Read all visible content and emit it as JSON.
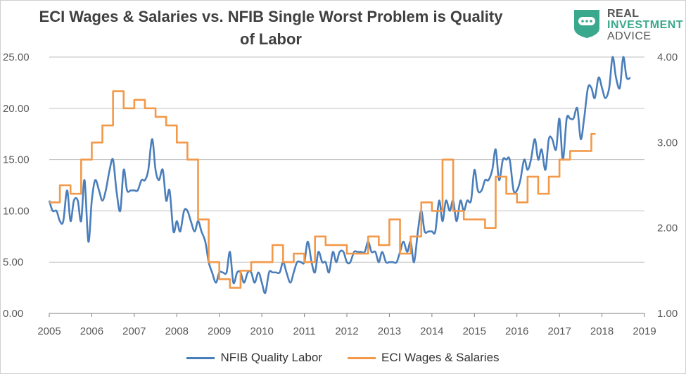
{
  "title_line1": "ECI Wages & Salaries vs. NFIB Single Worst Problem is Quality",
  "title_line2": "of Labor",
  "logo": {
    "line1": "REAL",
    "line2": "INVESTMENT",
    "line3": "ADVICE",
    "icon": "speech-bubble-shield-icon"
  },
  "colors": {
    "nfib": "#4a7ebb",
    "eci": "#f2994a",
    "grid": "#bfbfbf",
    "axis": "#7f7f7f"
  },
  "chart_data": {
    "type": "line",
    "title": "ECI Wages & Salaries vs. NFIB Single Worst Problem is Quality of Labor",
    "grid": true,
    "legend_position": "bottom",
    "x_ticks": [
      "2005",
      "2006",
      "2007",
      "2008",
      "2009",
      "2010",
      "2011",
      "2012",
      "2013",
      "2014",
      "2015",
      "2016",
      "2017",
      "2018",
      "2019"
    ],
    "x_range": [
      2005,
      2019
    ],
    "y_left": {
      "ticks": [
        "0.00",
        "5.00",
        "10.00",
        "15.00",
        "20.00",
        "25.00"
      ],
      "range": [
        0,
        25
      ]
    },
    "y_right": {
      "ticks": [
        "1.00",
        "2.00",
        "3.00",
        "4.00"
      ],
      "range": [
        1,
        4
      ]
    },
    "series": [
      {
        "name": "NFIB Quality Labor",
        "axis": "left",
        "points": [
          [
            2005.0,
            11
          ],
          [
            2005.08,
            10
          ],
          [
            2005.17,
            10
          ],
          [
            2005.25,
            9
          ],
          [
            2005.33,
            9
          ],
          [
            2005.42,
            12
          ],
          [
            2005.5,
            9
          ],
          [
            2005.58,
            11
          ],
          [
            2005.67,
            11
          ],
          [
            2005.75,
            9
          ],
          [
            2005.83,
            13
          ],
          [
            2005.92,
            7
          ],
          [
            2006.0,
            11
          ],
          [
            2006.08,
            13
          ],
          [
            2006.17,
            12
          ],
          [
            2006.25,
            11
          ],
          [
            2006.33,
            12
          ],
          [
            2006.42,
            14
          ],
          [
            2006.5,
            15
          ],
          [
            2006.58,
            12
          ],
          [
            2006.67,
            10
          ],
          [
            2006.75,
            14
          ],
          [
            2006.83,
            12
          ],
          [
            2006.92,
            12
          ],
          [
            2007.0,
            12
          ],
          [
            2007.08,
            12
          ],
          [
            2007.17,
            13
          ],
          [
            2007.25,
            13
          ],
          [
            2007.33,
            14
          ],
          [
            2007.42,
            17
          ],
          [
            2007.5,
            14
          ],
          [
            2007.58,
            13
          ],
          [
            2007.67,
            14
          ],
          [
            2007.75,
            11
          ],
          [
            2007.83,
            12
          ],
          [
            2007.92,
            8
          ],
          [
            2008.0,
            9
          ],
          [
            2008.08,
            8
          ],
          [
            2008.17,
            10
          ],
          [
            2008.25,
            10
          ],
          [
            2008.33,
            9
          ],
          [
            2008.42,
            8
          ],
          [
            2008.5,
            9
          ],
          [
            2008.58,
            8
          ],
          [
            2008.67,
            7
          ],
          [
            2008.75,
            5
          ],
          [
            2008.83,
            4
          ],
          [
            2008.92,
            3
          ],
          [
            2009.0,
            4
          ],
          [
            2009.08,
            4
          ],
          [
            2009.17,
            4
          ],
          [
            2009.25,
            6
          ],
          [
            2009.33,
            3
          ],
          [
            2009.42,
            4
          ],
          [
            2009.5,
            4
          ],
          [
            2009.58,
            3
          ],
          [
            2009.67,
            4
          ],
          [
            2009.75,
            4
          ],
          [
            2009.83,
            3
          ],
          [
            2009.92,
            4
          ],
          [
            2010.0,
            3
          ],
          [
            2010.08,
            2
          ],
          [
            2010.17,
            4
          ],
          [
            2010.25,
            4
          ],
          [
            2010.33,
            4
          ],
          [
            2010.42,
            4
          ],
          [
            2010.5,
            5
          ],
          [
            2010.58,
            4
          ],
          [
            2010.67,
            3
          ],
          [
            2010.75,
            4
          ],
          [
            2010.83,
            5
          ],
          [
            2010.92,
            5
          ],
          [
            2011.0,
            5
          ],
          [
            2011.08,
            7
          ],
          [
            2011.17,
            5
          ],
          [
            2011.25,
            4
          ],
          [
            2011.33,
            6
          ],
          [
            2011.42,
            5
          ],
          [
            2011.5,
            5
          ],
          [
            2011.58,
            4
          ],
          [
            2011.67,
            6
          ],
          [
            2011.75,
            5
          ],
          [
            2011.83,
            6
          ],
          [
            2011.92,
            6
          ],
          [
            2012.0,
            5
          ],
          [
            2012.08,
            5
          ],
          [
            2012.17,
            6
          ],
          [
            2012.25,
            6
          ],
          [
            2012.33,
            6
          ],
          [
            2012.42,
            6
          ],
          [
            2012.5,
            7
          ],
          [
            2012.58,
            6
          ],
          [
            2012.67,
            6
          ],
          [
            2012.75,
            5
          ],
          [
            2012.83,
            6
          ],
          [
            2012.92,
            5
          ],
          [
            2013.0,
            5
          ],
          [
            2013.08,
            5
          ],
          [
            2013.17,
            5
          ],
          [
            2013.25,
            6
          ],
          [
            2013.33,
            7
          ],
          [
            2013.42,
            6
          ],
          [
            2013.5,
            7
          ],
          [
            2013.58,
            5
          ],
          [
            2013.67,
            8
          ],
          [
            2013.75,
            10
          ],
          [
            2013.83,
            8
          ],
          [
            2013.92,
            8
          ],
          [
            2014.0,
            8
          ],
          [
            2014.08,
            8
          ],
          [
            2014.17,
            11
          ],
          [
            2014.25,
            9
          ],
          [
            2014.33,
            11
          ],
          [
            2014.42,
            10
          ],
          [
            2014.5,
            11
          ],
          [
            2014.58,
            9
          ],
          [
            2014.67,
            11
          ],
          [
            2014.75,
            10
          ],
          [
            2014.83,
            11
          ],
          [
            2014.92,
            11
          ],
          [
            2015.0,
            14
          ],
          [
            2015.08,
            12
          ],
          [
            2015.17,
            12
          ],
          [
            2015.25,
            13
          ],
          [
            2015.33,
            13
          ],
          [
            2015.42,
            14
          ],
          [
            2015.5,
            16
          ],
          [
            2015.58,
            13
          ],
          [
            2015.67,
            15
          ],
          [
            2015.75,
            15
          ],
          [
            2015.83,
            15
          ],
          [
            2015.92,
            12
          ],
          [
            2016.0,
            12
          ],
          [
            2016.08,
            13
          ],
          [
            2016.17,
            15
          ],
          [
            2016.25,
            14
          ],
          [
            2016.33,
            15
          ],
          [
            2016.42,
            17
          ],
          [
            2016.5,
            15
          ],
          [
            2016.58,
            16
          ],
          [
            2016.67,
            14
          ],
          [
            2016.75,
            17
          ],
          [
            2016.83,
            17
          ],
          [
            2016.92,
            16
          ],
          [
            2017.0,
            19
          ],
          [
            2017.08,
            15
          ],
          [
            2017.17,
            19
          ],
          [
            2017.25,
            19
          ],
          [
            2017.33,
            19
          ],
          [
            2017.42,
            20
          ],
          [
            2017.5,
            17
          ],
          [
            2017.58,
            19
          ],
          [
            2017.67,
            22
          ],
          [
            2017.75,
            22
          ],
          [
            2017.83,
            21
          ],
          [
            2017.92,
            23
          ],
          [
            2018.0,
            22
          ],
          [
            2018.08,
            21
          ],
          [
            2018.17,
            22
          ],
          [
            2018.25,
            25
          ],
          [
            2018.33,
            23
          ],
          [
            2018.42,
            22
          ],
          [
            2018.5,
            25
          ],
          [
            2018.58,
            23
          ],
          [
            2018.67,
            23
          ]
        ]
      },
      {
        "name": "ECI Wages & Salaries",
        "axis": "right",
        "points": [
          [
            2005.0,
            2.3
          ],
          [
            2005.25,
            2.5
          ],
          [
            2005.5,
            2.4
          ],
          [
            2005.75,
            2.8
          ],
          [
            2006.0,
            3.0
          ],
          [
            2006.25,
            3.2
          ],
          [
            2006.5,
            3.6
          ],
          [
            2006.75,
            3.4
          ],
          [
            2007.0,
            3.5
          ],
          [
            2007.25,
            3.4
          ],
          [
            2007.5,
            3.3
          ],
          [
            2007.75,
            3.2
          ],
          [
            2008.0,
            3.0
          ],
          [
            2008.25,
            2.8
          ],
          [
            2008.5,
            2.1
          ],
          [
            2008.75,
            1.6
          ],
          [
            2009.0,
            1.4
          ],
          [
            2009.25,
            1.3
          ],
          [
            2009.5,
            1.5
          ],
          [
            2009.75,
            1.6
          ],
          [
            2010.0,
            1.6
          ],
          [
            2010.25,
            1.8
          ],
          [
            2010.5,
            1.6
          ],
          [
            2010.75,
            1.7
          ],
          [
            2011.0,
            1.6
          ],
          [
            2011.25,
            1.9
          ],
          [
            2011.5,
            1.8
          ],
          [
            2011.75,
            1.8
          ],
          [
            2012.0,
            1.7
          ],
          [
            2012.25,
            1.7
          ],
          [
            2012.5,
            1.9
          ],
          [
            2012.75,
            1.8
          ],
          [
            2013.0,
            2.1
          ],
          [
            2013.25,
            1.7
          ],
          [
            2013.5,
            1.9
          ],
          [
            2013.75,
            2.3
          ],
          [
            2014.0,
            2.2
          ],
          [
            2014.25,
            2.8
          ],
          [
            2014.5,
            2.2
          ],
          [
            2014.75,
            2.1
          ],
          [
            2015.0,
            2.1
          ],
          [
            2015.25,
            2.0
          ],
          [
            2015.5,
            2.6
          ],
          [
            2015.75,
            2.4
          ],
          [
            2016.0,
            2.3
          ],
          [
            2016.25,
            2.6
          ],
          [
            2016.5,
            2.4
          ],
          [
            2016.75,
            2.6
          ],
          [
            2017.0,
            2.8
          ],
          [
            2017.25,
            2.9
          ],
          [
            2017.5,
            2.9
          ],
          [
            2017.75,
            3.1
          ]
        ]
      }
    ],
    "legend": [
      "NFIB Quality Labor",
      "ECI Wages & Salaries"
    ]
  }
}
